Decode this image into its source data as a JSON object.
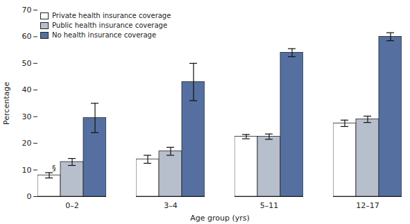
{
  "chart_data": {
    "type": "bar",
    "categories": [
      "0–2",
      "3–4",
      "5–11",
      "12–17"
    ],
    "series": [
      {
        "name": "Private health insurance coverage",
        "color": "#ffffff",
        "values": [
          8,
          14,
          22.5,
          27.5
        ],
        "errors": [
          1.0,
          1.5,
          0.8,
          1.2
        ]
      },
      {
        "name": "Public health insurance coverage",
        "color": "#b8bfcc",
        "values": [
          13,
          17,
          22.5,
          29
        ],
        "errors": [
          1.3,
          1.5,
          1.0,
          1.2
        ]
      },
      {
        "name": "No health insurance coverage",
        "color": "#5570a0",
        "values": [
          29.5,
          43,
          54,
          60
        ],
        "errors": [
          5.5,
          7,
          1.5,
          1.5
        ]
      }
    ],
    "xlabel": "Age group (yrs)",
    "ylabel": "Percentage",
    "ylim": [
      0,
      70
    ],
    "yticks": [
      0,
      10,
      20,
      30,
      40,
      50,
      60,
      70
    ],
    "legend": "upper left",
    "grid": false,
    "annotations": [
      {
        "text": "§",
        "category": "0–2",
        "series": "Private health insurance coverage",
        "y": 10.8
      }
    ]
  }
}
